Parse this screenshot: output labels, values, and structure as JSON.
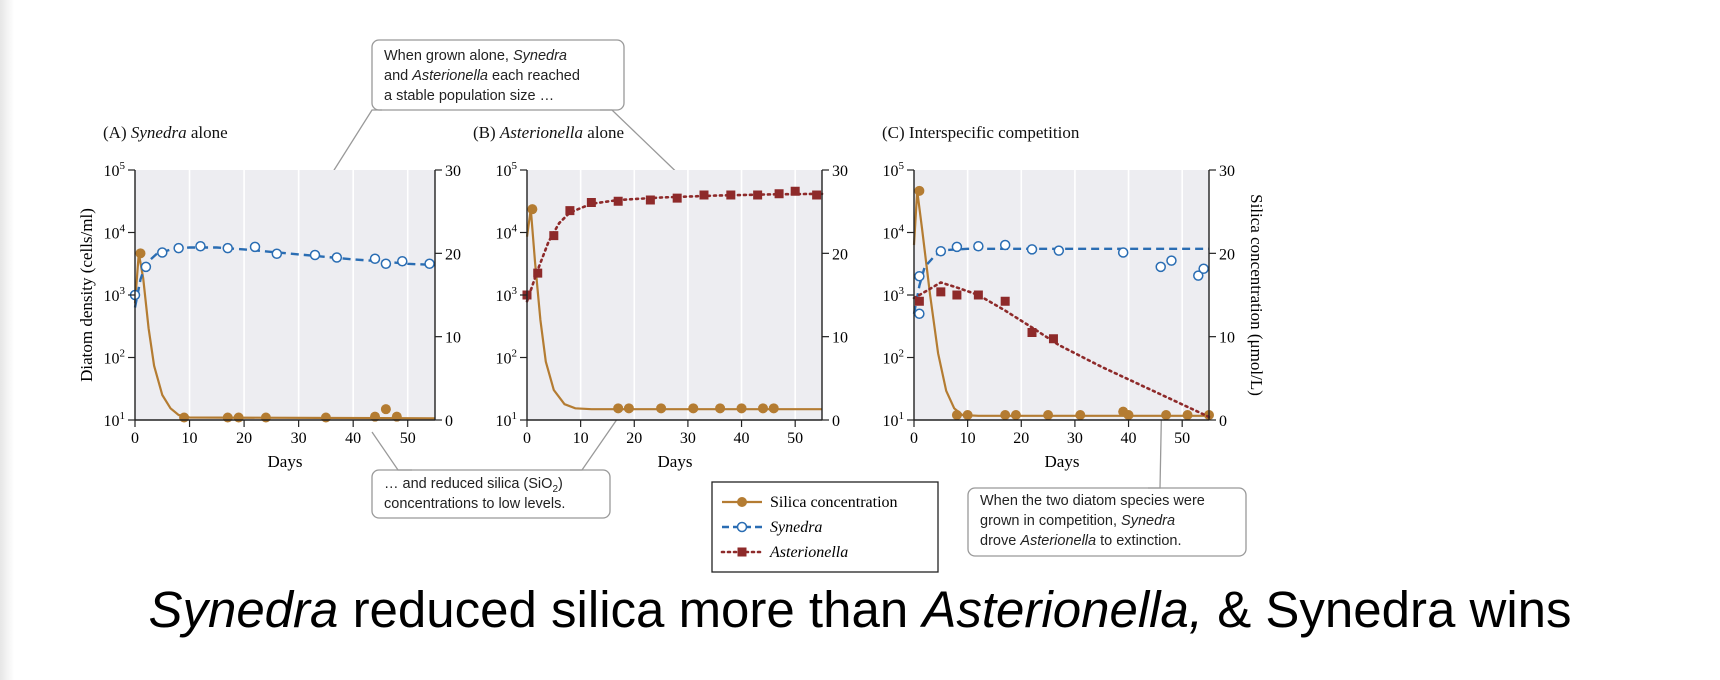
{
  "chart_data": [
    {
      "type": "line",
      "panel": "(A)",
      "title_italic": "Synedra",
      "title_rest": " alone",
      "xlabel": "Days",
      "ylabel": "Diatom density (cells/ml)",
      "ylabel_right": "",
      "xlim": [
        0,
        55
      ],
      "ylim_exp": [
        1,
        5
      ],
      "ylim_right": [
        0,
        30
      ],
      "x_ticks": [
        "0",
        "10",
        "20",
        "30",
        "40",
        "50"
      ],
      "y_exp_ticks": [
        "1",
        "2",
        "3",
        "4",
        "5"
      ],
      "y_right_ticks": [
        "0",
        "10",
        "20",
        "30"
      ],
      "series": [
        {
          "key": "silica",
          "markers": [
            [
              1,
              20
            ],
            [
              9,
              0.3
            ],
            [
              17,
              0.3
            ],
            [
              19,
              0.3
            ],
            [
              24,
              0.3
            ],
            [
              35,
              0.3
            ],
            [
              44,
              0.4
            ],
            [
              46,
              1.3
            ],
            [
              48,
              0.4
            ]
          ],
          "curve": [
            [
              0,
              14
            ],
            [
              0.7,
              20
            ],
            [
              1.5,
              17
            ],
            [
              2.5,
              11
            ],
            [
              3.5,
              6.5
            ],
            [
              5,
              3
            ],
            [
              6.5,
              1.4
            ],
            [
              8,
              0.6
            ],
            [
              10,
              0.3
            ],
            [
              55,
              0.2
            ]
          ]
        },
        {
          "key": "synedra",
          "markers": [
            [
              0,
              3.0
            ],
            [
              2,
              3.45
            ],
            [
              5,
              3.68
            ],
            [
              8,
              3.75
            ],
            [
              12,
              3.78
            ],
            [
              17,
              3.75
            ],
            [
              22,
              3.77
            ],
            [
              26,
              3.66
            ],
            [
              33,
              3.64
            ],
            [
              37,
              3.6
            ],
            [
              44,
              3.58
            ],
            [
              46,
              3.5
            ],
            [
              49,
              3.54
            ],
            [
              54,
              3.5
            ]
          ],
          "curve": [
            [
              0,
              2.8
            ],
            [
              1,
              3.25
            ],
            [
              2,
              3.5
            ],
            [
              4,
              3.66
            ],
            [
              7,
              3.74
            ],
            [
              10,
              3.76
            ],
            [
              15,
              3.76
            ],
            [
              20,
              3.73
            ],
            [
              25,
              3.69
            ],
            [
              30,
              3.65
            ],
            [
              35,
              3.61
            ],
            [
              40,
              3.57
            ],
            [
              45,
              3.54
            ],
            [
              50,
              3.5
            ],
            [
              55,
              3.48
            ]
          ]
        }
      ]
    },
    {
      "type": "line",
      "panel": "(B)",
      "title_italic": "Asterionella",
      "title_rest": " alone",
      "xlabel": "Days",
      "ylabel": "",
      "ylabel_right": "",
      "xlim": [
        0,
        55
      ],
      "ylim_exp": [
        1,
        5
      ],
      "ylim_right": [
        0,
        30
      ],
      "x_ticks": [
        "0",
        "10",
        "20",
        "30",
        "40",
        "50"
      ],
      "y_exp_ticks": [
        "1",
        "2",
        "3",
        "4",
        "5"
      ],
      "y_right_ticks": [
        "0",
        "10",
        "20",
        "30"
      ],
      "series": [
        {
          "key": "silica",
          "markers": [
            [
              1,
              25.3
            ],
            [
              17,
              1.4
            ],
            [
              19,
              1.4
            ],
            [
              25,
              1.4
            ],
            [
              31,
              1.4
            ],
            [
              36,
              1.4
            ],
            [
              40,
              1.4
            ],
            [
              44,
              1.4
            ],
            [
              46,
              1.4
            ]
          ],
          "curve": [
            [
              0,
              22
            ],
            [
              0.7,
              25.3
            ],
            [
              1.5,
              19
            ],
            [
              2.5,
              12
            ],
            [
              3.5,
              7
            ],
            [
              5,
              3.6
            ],
            [
              7,
              1.9
            ],
            [
              9,
              1.4
            ],
            [
              12,
              1.3
            ],
            [
              55,
              1.3
            ]
          ]
        },
        {
          "key": "asterionella",
          "markers": [
            [
              0,
              3.0
            ],
            [
              2,
              3.35
            ],
            [
              5,
              3.95
            ],
            [
              8,
              4.35
            ],
            [
              12,
              4.48
            ],
            [
              17,
              4.5
            ],
            [
              23,
              4.52
            ],
            [
              28,
              4.55
            ],
            [
              33,
              4.6
            ],
            [
              38,
              4.6
            ],
            [
              43,
              4.6
            ],
            [
              47,
              4.62
            ],
            [
              50,
              4.66
            ],
            [
              54,
              4.6
            ]
          ],
          "curve": [
            [
              0,
              2.9
            ],
            [
              2,
              3.4
            ],
            [
              4,
              3.85
            ],
            [
              6,
              4.15
            ],
            [
              8,
              4.32
            ],
            [
              12,
              4.46
            ],
            [
              17,
              4.52
            ],
            [
              25,
              4.56
            ],
            [
              35,
              4.59
            ],
            [
              45,
              4.61
            ],
            [
              55,
              4.62
            ]
          ]
        }
      ]
    },
    {
      "type": "line",
      "panel": "(C)",
      "title_italic": "",
      "title_rest": "Interspecific competition",
      "xlabel": "Days",
      "ylabel": "",
      "ylabel_right": "Silica concentration (μmol/L)",
      "xlim": [
        0,
        55
      ],
      "ylim_exp": [
        1,
        5
      ],
      "ylim_right": [
        0,
        30
      ],
      "x_ticks": [
        "0",
        "10",
        "20",
        "30",
        "40",
        "50"
      ],
      "y_exp_ticks": [
        "1",
        "2",
        "3",
        "4",
        "5"
      ],
      "y_right_ticks": [
        "0",
        "10",
        "20",
        "30"
      ],
      "series": [
        {
          "key": "silica",
          "markers": [
            [
              1,
              27.5
            ],
            [
              8,
              0.6
            ],
            [
              10,
              0.6
            ],
            [
              17,
              0.6
            ],
            [
              19,
              0.6
            ],
            [
              25,
              0.6
            ],
            [
              31,
              0.6
            ],
            [
              39,
              1.0
            ],
            [
              40,
              0.6
            ],
            [
              47,
              0.6
            ],
            [
              51,
              0.6
            ],
            [
              55,
              0.6
            ]
          ],
          "curve": [
            [
              0,
              21
            ],
            [
              0.6,
              27.5
            ],
            [
              1.5,
              23
            ],
            [
              3,
              15
            ],
            [
              4.5,
              8
            ],
            [
              6,
              3.5
            ],
            [
              7.5,
              1.4
            ],
            [
              9,
              0.6
            ],
            [
              12,
              0.5
            ],
            [
              55,
              0.5
            ]
          ]
        },
        {
          "key": "synedra",
          "markers": [
            [
              1,
              2.7
            ],
            [
              1,
              3.3
            ],
            [
              5,
              3.7
            ],
            [
              8,
              3.77
            ],
            [
              12,
              3.78
            ],
            [
              17,
              3.8
            ],
            [
              22,
              3.73
            ],
            [
              27,
              3.71
            ],
            [
              39,
              3.68
            ],
            [
              46,
              3.45
            ],
            [
              48,
              3.55
            ],
            [
              53,
              3.31
            ],
            [
              54,
              3.42
            ]
          ],
          "curve": [
            [
              0,
              2.7
            ],
            [
              1,
              3.15
            ],
            [
              2,
              3.45
            ],
            [
              4,
              3.64
            ],
            [
              6,
              3.72
            ],
            [
              10,
              3.74
            ],
            [
              20,
              3.74
            ],
            [
              30,
              3.74
            ],
            [
              40,
              3.74
            ],
            [
              55,
              3.74
            ]
          ]
        },
        {
          "key": "asterionella",
          "markers": [
            [
              1,
              2.9
            ],
            [
              5,
              3.05
            ],
            [
              8,
              3.0
            ],
            [
              12,
              3.0
            ],
            [
              17,
              2.9
            ],
            [
              22,
              2.4
            ],
            [
              26,
              2.3
            ]
          ],
          "curve": [
            [
              0,
              2.95
            ],
            [
              3,
              3.1
            ],
            [
              5,
              3.2
            ],
            [
              8,
              3.12
            ],
            [
              12,
              3.0
            ],
            [
              17,
              2.75
            ],
            [
              22,
              2.48
            ],
            [
              27,
              2.2
            ],
            [
              35,
              1.85
            ],
            [
              45,
              1.45
            ],
            [
              55,
              1.05
            ]
          ]
        }
      ]
    }
  ],
  "legend": {
    "items": [
      {
        "key": "silica",
        "label": "Silica concentration",
        "italic": false
      },
      {
        "key": "synedra",
        "label": "Synedra",
        "italic": true
      },
      {
        "key": "asterionella",
        "label": "Asterionella",
        "italic": true
      }
    ]
  },
  "colors": {
    "silica": "#b47c32",
    "synedra": "#2a6db3",
    "asterionella": "#8e2a2a",
    "plot_bg": "#ededf1",
    "grid": "#ffffff",
    "callout_border": "#999999"
  },
  "callouts": {
    "top": [
      "When grown alone, ",
      "Synedra",
      "and ",
      "Asterionella",
      " each reached",
      "a stable population size …"
    ],
    "bottom": [
      "… and reduced silica (SiO",
      "2",
      ")",
      "concentrations to low levels."
    ],
    "right": [
      "When the two diatom species were",
      "grown in competition, ",
      "Synedra",
      "drove ",
      "Asterionella",
      " to extinction."
    ]
  },
  "headline": {
    "part1": "Synedra",
    "part2": " reduced silica more than ",
    "part3": "Asterionella,",
    "part4": " & Synedra wins"
  }
}
